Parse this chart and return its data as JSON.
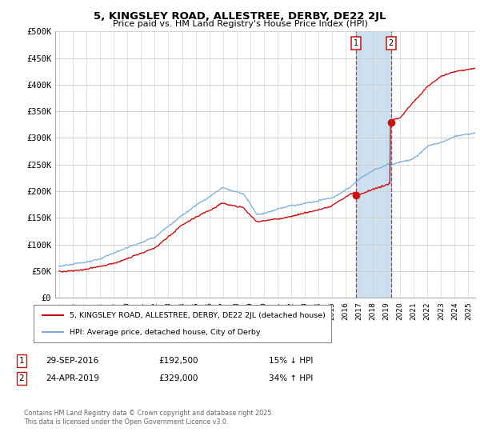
{
  "title": "5, KINGSLEY ROAD, ALLESTREE, DERBY, DE22 2JL",
  "subtitle": "Price paid vs. HM Land Registry's House Price Index (HPI)",
  "ylabel_ticks": [
    "£0",
    "£50K",
    "£100K",
    "£150K",
    "£200K",
    "£250K",
    "£300K",
    "£350K",
    "£400K",
    "£450K",
    "£500K"
  ],
  "ytick_values": [
    0,
    50000,
    100000,
    150000,
    200000,
    250000,
    300000,
    350000,
    400000,
    450000,
    500000
  ],
  "ylim": [
    0,
    500000
  ],
  "xlim_start": 1994.7,
  "xlim_end": 2025.5,
  "hpi_color": "#7aaddc",
  "price_color": "#cc1111",
  "vline_color": "#cc1111",
  "marker1_x": 2016.75,
  "marker1_y": 192500,
  "marker2_x": 2019.33,
  "marker2_y": 329000,
  "legend_line1": "5, KINGSLEY ROAD, ALLESTREE, DERBY, DE22 2JL (detached house)",
  "legend_line2": "HPI: Average price, detached house, City of Derby",
  "footnote": "Contains HM Land Registry data © Crown copyright and database right 2025.\nThis data is licensed under the Open Government Licence v3.0.",
  "background_color": "#ffffff",
  "grid_color": "#cccccc",
  "span_color": "#cce0f0"
}
